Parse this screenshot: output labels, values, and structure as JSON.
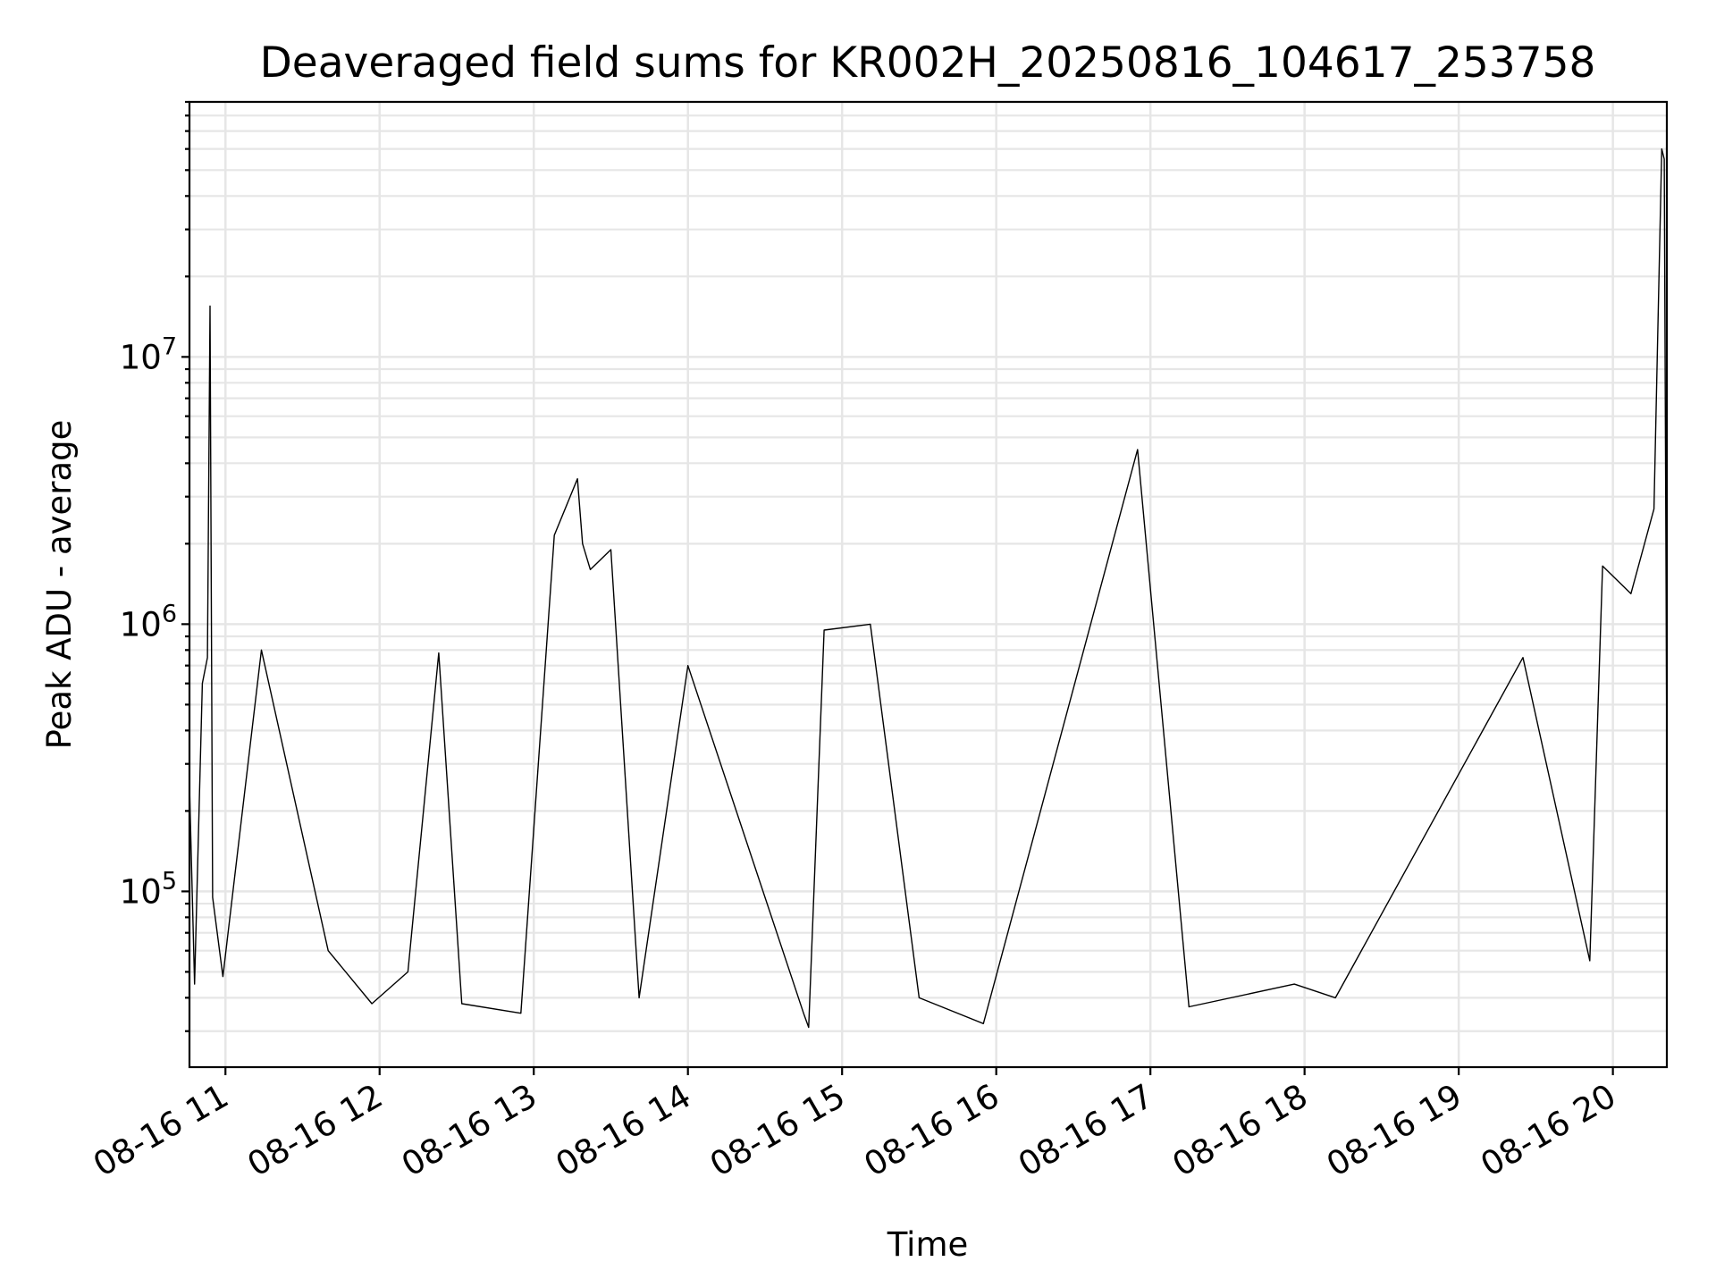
{
  "chart_data": {
    "type": "line",
    "title": "Deaveraged field sums for KR002H_20250816_104617_253758",
    "xlabel": "Time",
    "ylabel": "Peak ADU - average",
    "yscale": "log",
    "ylim": [
      22000,
      90000000
    ],
    "xlim": [
      "2025-08-16T10:46",
      "2025-08-16T20:21"
    ],
    "grid": true,
    "line_color": "#000000",
    "x_ticks": [
      {
        "time": "2025-08-16T11:00",
        "label": "08-16 11"
      },
      {
        "time": "2025-08-16T12:00",
        "label": "08-16 12"
      },
      {
        "time": "2025-08-16T13:00",
        "label": "08-16 13"
      },
      {
        "time": "2025-08-16T14:00",
        "label": "08-16 14"
      },
      {
        "time": "2025-08-16T15:00",
        "label": "08-16 15"
      },
      {
        "time": "2025-08-16T16:00",
        "label": "08-16 16"
      },
      {
        "time": "2025-08-16T17:00",
        "label": "08-16 17"
      },
      {
        "time": "2025-08-16T18:00",
        "label": "08-16 18"
      },
      {
        "time": "2025-08-16T19:00",
        "label": "08-16 19"
      },
      {
        "time": "2025-08-16T20:00",
        "label": "08-16 20"
      }
    ],
    "y_ticks": [
      {
        "value": 100000,
        "base": "10",
        "exp": "5"
      },
      {
        "value": 1000000,
        "base": "10",
        "exp": "6"
      },
      {
        "value": 10000000,
        "base": "10",
        "exp": "7"
      }
    ],
    "series": [
      {
        "points": [
          {
            "t": "2025-08-16T10:46",
            "v": 250000
          },
          {
            "t": "2025-08-16T10:48",
            "v": 45000
          },
          {
            "t": "2025-08-16T10:51",
            "v": 600000
          },
          {
            "t": "2025-08-16T10:53",
            "v": 750000
          },
          {
            "t": "2025-08-16T10:54",
            "v": 15500000
          },
          {
            "t": "2025-08-16T10:55",
            "v": 95000
          },
          {
            "t": "2025-08-16T10:59",
            "v": 48000
          },
          {
            "t": "2025-08-16T11:14",
            "v": 800000
          },
          {
            "t": "2025-08-16T11:40",
            "v": 60000
          },
          {
            "t": "2025-08-16T11:57",
            "v": 38000
          },
          {
            "t": "2025-08-16T12:11",
            "v": 50000
          },
          {
            "t": "2025-08-16T12:23",
            "v": 780000
          },
          {
            "t": "2025-08-16T12:32",
            "v": 38000
          },
          {
            "t": "2025-08-16T12:55",
            "v": 35000
          },
          {
            "t": "2025-08-16T13:08",
            "v": 2150000
          },
          {
            "t": "2025-08-16T13:17",
            "v": 3500000
          },
          {
            "t": "2025-08-16T13:19",
            "v": 2000000
          },
          {
            "t": "2025-08-16T13:22",
            "v": 1600000
          },
          {
            "t": "2025-08-16T13:30",
            "v": 1900000
          },
          {
            "t": "2025-08-16T13:41",
            "v": 40000
          },
          {
            "t": "2025-08-16T14:00",
            "v": 700000
          },
          {
            "t": "2025-08-16T14:45",
            "v": 35000
          },
          {
            "t": "2025-08-16T14:47",
            "v": 31000
          },
          {
            "t": "2025-08-16T14:53",
            "v": 950000
          },
          {
            "t": "2025-08-16T15:11",
            "v": 1000000
          },
          {
            "t": "2025-08-16T15:30",
            "v": 40000
          },
          {
            "t": "2025-08-16T15:55",
            "v": 32000
          },
          {
            "t": "2025-08-16T16:55",
            "v": 4500000
          },
          {
            "t": "2025-08-16T17:15",
            "v": 37000
          },
          {
            "t": "2025-08-16T17:56",
            "v": 45000
          },
          {
            "t": "2025-08-16T18:12",
            "v": 40000
          },
          {
            "t": "2025-08-16T19:25",
            "v": 750000
          },
          {
            "t": "2025-08-16T19:51",
            "v": 55000
          },
          {
            "t": "2025-08-16T19:56",
            "v": 1650000
          },
          {
            "t": "2025-08-16T20:07",
            "v": 1300000
          },
          {
            "t": "2025-08-16T20:16",
            "v": 2700000
          },
          {
            "t": "2025-08-16T20:19",
            "v": 60000000
          },
          {
            "t": "2025-08-16T20:20",
            "v": 55000000
          },
          {
            "t": "2025-08-16T20:21",
            "v": 300000
          }
        ]
      }
    ]
  }
}
